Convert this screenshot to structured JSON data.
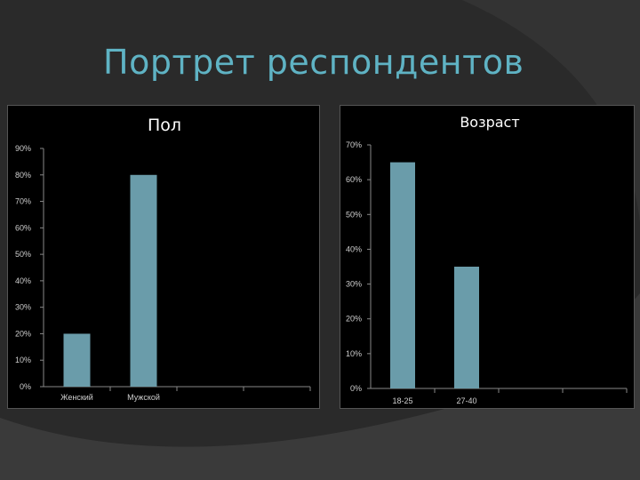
{
  "slide": {
    "title": "Портрет респондентов"
  },
  "colors": {
    "bar": "#6a9caa",
    "accent": "#5fb3c4"
  },
  "chart_data": [
    {
      "type": "bar",
      "title": "Пол",
      "categories": [
        "Женский",
        "Мужской"
      ],
      "values": [
        20,
        80
      ],
      "ylim": [
        0,
        90
      ],
      "yticks": [
        0,
        10,
        20,
        30,
        40,
        50,
        60,
        70,
        80,
        90
      ],
      "ytick_labels": [
        "0%",
        "10%",
        "20%",
        "30%",
        "40%",
        "50%",
        "60%",
        "70%",
        "80%",
        "90%"
      ],
      "xlabel": "",
      "ylabel": "",
      "grid": false
    },
    {
      "type": "bar",
      "title": "Возраст",
      "categories": [
        "18-25",
        "27-40"
      ],
      "values": [
        65,
        35
      ],
      "ylim": [
        0,
        70
      ],
      "yticks": [
        0,
        10,
        20,
        30,
        40,
        50,
        60,
        70
      ],
      "ytick_labels": [
        "0%",
        "10%",
        "20%",
        "30%",
        "40%",
        "50%",
        "60%",
        "70%"
      ],
      "xlabel": "",
      "ylabel": "",
      "grid": false
    }
  ]
}
